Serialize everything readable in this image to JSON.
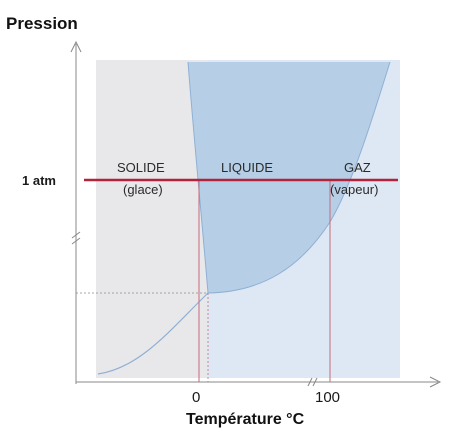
{
  "axes": {
    "y_title": "Pression",
    "x_title": "Température °C",
    "y_tick_label": "1 atm",
    "x_tick_labels": [
      "0",
      "100"
    ]
  },
  "regions": {
    "solid": {
      "name": "SOLIDE",
      "detail": "(glace)"
    },
    "liquid": {
      "name": "LIQUIDE"
    },
    "gas": {
      "name": "GAZ",
      "detail": "(vapeur)"
    }
  },
  "colors": {
    "solid_region": "#e8e8ea",
    "liquid_region": "#b7cfe6",
    "gas_region": "#dde8f4",
    "pressure_line": "#b0233a",
    "guide_lines": "#c86a7a",
    "axes": "#888888"
  }
}
